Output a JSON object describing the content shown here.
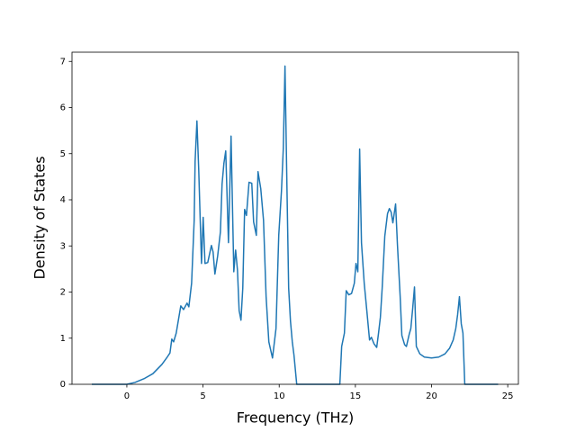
{
  "chart_data": {
    "type": "line",
    "x_label": "Frequency (THz)",
    "y_label": "Density of States",
    "xlim": [
      -3.6,
      25.7
    ],
    "ylim": [
      0,
      7.2
    ],
    "xticks": [
      0,
      5,
      10,
      15,
      20,
      25
    ],
    "yticks": [
      0,
      1,
      2,
      3,
      4,
      5,
      6,
      7
    ],
    "series": [
      {
        "color": "#1f77b4",
        "x": [
          -2.3,
          0,
          0.53,
          1.12,
          1.71,
          2.3,
          2.65,
          2.83,
          2.95,
          3.07,
          3.24,
          3.54,
          3.72,
          3.95,
          4.07,
          4.25,
          4.42,
          4.48,
          4.6,
          4.72,
          4.9,
          5.01,
          5.13,
          5.31,
          5.55,
          5.66,
          5.78,
          5.96,
          6.14,
          6.25,
          6.37,
          6.49,
          6.67,
          6.84,
          7.02,
          7.14,
          7.26,
          7.37,
          7.49,
          7.61,
          7.73,
          7.85,
          8.02,
          8.2,
          8.32,
          8.5,
          8.61,
          8.79,
          8.97,
          9.14,
          9.32,
          9.56,
          9.79,
          9.97,
          10.15,
          10.27,
          10.38,
          10.5,
          10.62,
          10.74,
          10.86,
          10.97,
          11.15,
          13.98,
          14.1,
          14.28,
          14.4,
          14.57,
          14.75,
          14.93,
          15.04,
          15.16,
          15.28,
          15.4,
          15.58,
          15.75,
          15.93,
          16.05,
          16.22,
          16.4,
          16.52,
          16.64,
          16.76,
          16.93,
          17.11,
          17.23,
          17.35,
          17.46,
          17.64,
          17.76,
          17.94,
          18.05,
          18.23,
          18.35,
          18.53,
          18.64,
          18.76,
          18.88,
          19.0,
          19.23,
          19.53,
          20.0,
          20.47,
          20.88,
          21.18,
          21.42,
          21.59,
          21.71,
          21.83,
          21.95,
          22.06,
          22.18,
          24.37
        ],
        "values": [
          0,
          0,
          0.04,
          0.12,
          0.23,
          0.43,
          0.59,
          0.68,
          0.98,
          0.92,
          1.11,
          1.7,
          1.62,
          1.76,
          1.68,
          2.19,
          3.56,
          4.83,
          5.71,
          4.63,
          2.62,
          3.62,
          2.62,
          2.64,
          3.01,
          2.87,
          2.39,
          2.78,
          3.3,
          4.34,
          4.79,
          5.06,
          3.07,
          5.38,
          2.44,
          2.91,
          2.48,
          1.6,
          1.39,
          2.09,
          3.79,
          3.66,
          4.38,
          4.36,
          3.52,
          3.23,
          4.61,
          4.24,
          3.56,
          1.9,
          0.92,
          0.57,
          1.21,
          3.23,
          4.2,
          5.12,
          6.9,
          4.44,
          2.09,
          1.37,
          0.92,
          0.63,
          0,
          0,
          0.82,
          1.11,
          2.03,
          1.94,
          1.97,
          2.19,
          2.62,
          2.44,
          5.1,
          3.07,
          2.19,
          1.6,
          0.96,
          1.02,
          0.88,
          0.8,
          1.11,
          1.45,
          2.09,
          3.21,
          3.7,
          3.81,
          3.73,
          3.5,
          3.91,
          3.03,
          1.9,
          1.06,
          0.86,
          0.82,
          1.08,
          1.21,
          1.64,
          2.11,
          0.82,
          0.66,
          0.59,
          0.57,
          0.59,
          0.66,
          0.78,
          0.96,
          1.21,
          1.51,
          1.9,
          1.31,
          1.11,
          0,
          0
        ]
      }
    ]
  }
}
